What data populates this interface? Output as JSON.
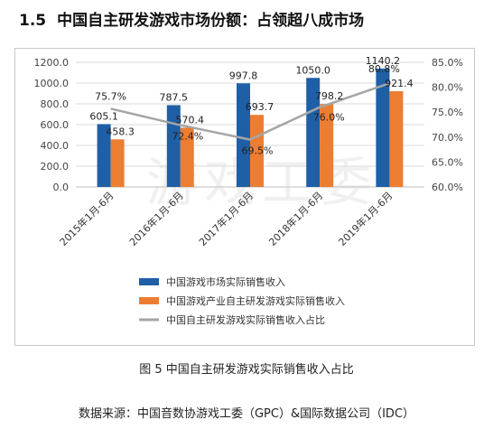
{
  "page": {
    "section_number": "1.5",
    "section_title": "中国自主研发游戏市场份额：占领超八成市场",
    "figure_caption": "图 5  中国自主研发游戏实际销售收入占比",
    "source_note": "数据来源：中国音数协游戏工委（GPC）&国际数据公司（IDC）",
    "watermark": "游戏工委"
  },
  "colors": {
    "series_blue": "#1f5fa6",
    "series_orange": "#ed7d31",
    "series_gray": "#a5a5a5",
    "grid": "#d9d9d9",
    "axis_text": "#444444"
  },
  "chart_data": {
    "type": "bar",
    "categories": [
      "2015年1月-6月",
      "2016年1月-6月",
      "2017年1月-6月",
      "2018年1月-6月",
      "2019年1月-6月"
    ],
    "series": [
      {
        "name": "中国游戏市场实际销售收入",
        "kind": "bar",
        "axis": "left",
        "color": "#1f5fa6",
        "values": [
          605.1,
          787.5,
          997.8,
          1050.0,
          1140.2
        ],
        "labels": [
          "605.1",
          "787.5",
          "997.8",
          "1050.0",
          "1140.2"
        ]
      },
      {
        "name": "中国游戏产业自主研发游戏实际销售收入",
        "kind": "bar",
        "axis": "left",
        "color": "#ed7d31",
        "values": [
          458.3,
          570.4,
          693.7,
          798.2,
          921.4
        ],
        "labels": [
          "458.3",
          "570.4",
          "693.7",
          "798.2",
          "921.4"
        ]
      },
      {
        "name": "中国自主研发游戏实际销售收入占比",
        "kind": "line",
        "axis": "right",
        "color": "#a5a5a5",
        "values": [
          75.7,
          72.4,
          69.5,
          76.0,
          80.8
        ],
        "labels": [
          "75.7%",
          "72.4%",
          "69.5%",
          "76.0%",
          "80.8%"
        ]
      }
    ],
    "y_left": {
      "min": 0,
      "max": 1200,
      "ticks": [
        "0.0",
        "200.0",
        "400.0",
        "600.0",
        "800.0",
        "1000.0",
        "1200.0"
      ]
    },
    "y_right": {
      "min": 60,
      "max": 85,
      "ticks": [
        "60.0%",
        "65.0%",
        "70.0%",
        "75.0%",
        "80.0%",
        "85.0%"
      ]
    },
    "grid": true,
    "legend_position": "bottom"
  }
}
